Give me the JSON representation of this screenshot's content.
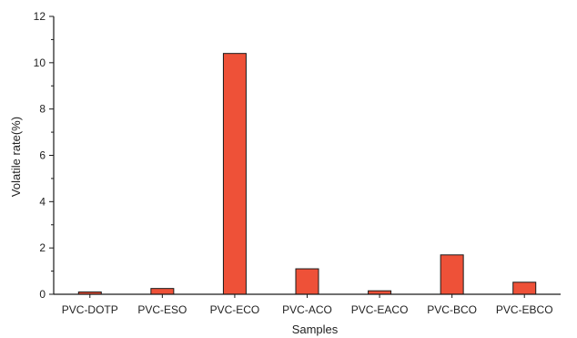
{
  "chart_data": {
    "type": "bar",
    "title": "",
    "xlabel": "Samples",
    "ylabel": "Volatile rate(%)",
    "categories": [
      "PVC-DOTP",
      "PVC-ESO",
      "PVC-ECO",
      "PVC-ACO",
      "PVC-EACO",
      "PVC-BCO",
      "PVC-EBCO"
    ],
    "values": [
      0.1,
      0.25,
      10.4,
      1.1,
      0.15,
      1.7,
      0.52
    ],
    "ylim": [
      0,
      12
    ],
    "yticks": [
      "0",
      "2",
      "4",
      "6",
      "8",
      "10",
      "12"
    ],
    "grid": false,
    "legend": "none",
    "colors": {
      "bar_fill": "#ee5138",
      "bar_stroke": "#1a1a1a",
      "axis": "#1a1a1a"
    }
  }
}
